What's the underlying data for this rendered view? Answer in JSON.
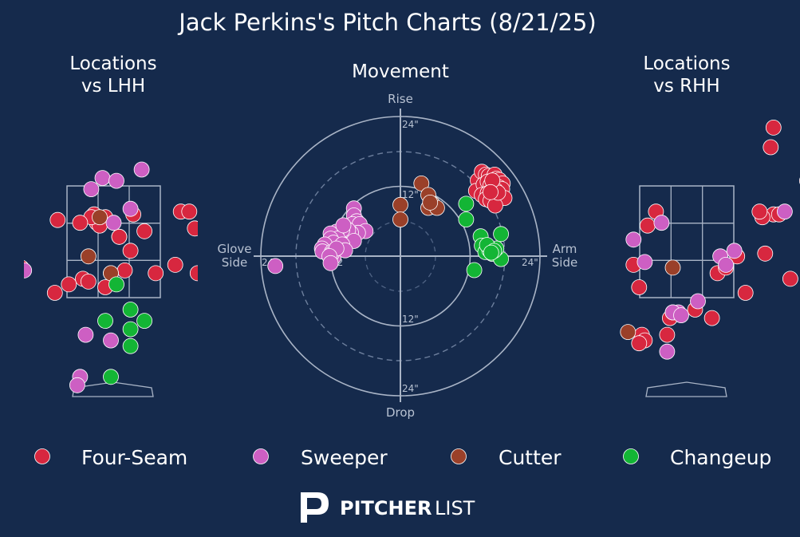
{
  "title": "Jack Perkins's Pitch Charts (8/21/25)",
  "colors": {
    "background": "#152a4c",
    "four_seam": "#d7273f",
    "sweeper": "#cd5fc3",
    "cutter": "#9a4029",
    "changeup": "#13b535",
    "grid": "#a9b4c6"
  },
  "legend": [
    {
      "key": "four_seam",
      "label": "Four-Seam"
    },
    {
      "key": "sweeper",
      "label": "Sweeper"
    },
    {
      "key": "cutter",
      "label": "Cutter"
    },
    {
      "key": "changeup",
      "label": "Changeup"
    }
  ],
  "logo_text": {
    "bold": "PITCHER",
    "light": "LIST"
  },
  "chart_data": [
    {
      "type": "scatter",
      "title_line1": "Locations",
      "title_line2": "vs LHH",
      "series": [
        {
          "name": "Four-Seam",
          "key": "four_seam",
          "points": [
            [
              2.65,
              4.1
            ],
            [
              1.45,
              3.25
            ],
            [
              0.55,
              3.2
            ],
            [
              0.35,
              3.5
            ],
            [
              0.3,
              2.85
            ],
            [
              0.1,
              3.1
            ],
            [
              -0.15,
              3.45
            ],
            [
              -0.35,
              3.5
            ],
            [
              -0.3,
              3.35
            ],
            [
              -0.25,
              3.3
            ],
            [
              -0.4,
              3.45
            ],
            [
              -0.6,
              3.35
            ],
            [
              -1.0,
              3.4
            ],
            [
              -0.55,
              2.35
            ],
            [
              -0.8,
              2.25
            ],
            [
              -0.15,
              2.2
            ],
            [
              0.2,
              2.5
            ],
            [
              0.75,
              2.45
            ],
            [
              1.1,
              2.6
            ],
            [
              1.5,
              2.45
            ],
            [
              -1.65,
              2.55
            ],
            [
              -1.05,
              2.1
            ],
            [
              0.1,
              3.1
            ],
            [
              -0.45,
              2.3
            ],
            [
              1.2,
              3.55
            ],
            [
              1.35,
              3.55
            ]
          ]
        },
        {
          "name": "Sweeper",
          "key": "sweeper",
          "points": [
            [
              -0.2,
              4.15
            ],
            [
              0.05,
              4.1
            ],
            [
              0.5,
              4.3
            ],
            [
              -0.4,
              3.95
            ],
            [
              0.3,
              3.6
            ],
            [
              0.0,
              3.35
            ],
            [
              -1.6,
              2.5
            ],
            [
              -0.05,
              2.45
            ],
            [
              -0.5,
              1.35
            ],
            [
              -0.05,
              1.25
            ],
            [
              -0.6,
              0.6
            ],
            [
              -0.65,
              0.45
            ]
          ]
        },
        {
          "name": "Cutter",
          "key": "cutter",
          "points": [
            [
              -0.45,
              2.75
            ],
            [
              -0.05,
              2.45
            ],
            [
              -1.75,
              1.25
            ],
            [
              -0.25,
              3.45
            ]
          ]
        },
        {
          "name": "Changeup",
          "key": "changeup",
          "points": [
            [
              2.5,
              3.9
            ],
            [
              2.6,
              3.8
            ],
            [
              2.6,
              2.4
            ],
            [
              2.55,
              1.85
            ],
            [
              0.3,
              1.8
            ],
            [
              0.55,
              1.6
            ],
            [
              0.3,
              1.45
            ],
            [
              0.3,
              1.15
            ],
            [
              -0.15,
              1.6
            ],
            [
              -0.05,
              0.6
            ],
            [
              0.05,
              2.25
            ]
          ]
        }
      ]
    },
    {
      "type": "scatter",
      "title": "Movement",
      "labels": {
        "top": "Rise",
        "bottom": "Drop",
        "left_line1": "Glove",
        "left_line2": "Side",
        "right_line1": "Arm",
        "right_line2": "Side"
      },
      "ring_labels": {
        "top_outer": "24\"",
        "top_inner": "12\"",
        "bottom_inner": "12\"",
        "bottom_outer": "24\"",
        "left_outer": "24\"",
        "left_inner": "12",
        "right_outer": "24\""
      },
      "series": [
        {
          "name": "Four-Seam",
          "key": "four_seam",
          "points": [
            [
              13.3,
              13.0
            ],
            [
              14.0,
              14.5
            ],
            [
              14.7,
              14.0
            ],
            [
              15.2,
              13.8
            ],
            [
              16.2,
              14.0
            ],
            [
              16.5,
              13.3
            ],
            [
              17.0,
              13.1
            ],
            [
              17.6,
              12.5
            ],
            [
              13.0,
              11.2
            ],
            [
              14.3,
              12.3
            ],
            [
              15.0,
              12.8
            ],
            [
              15.5,
              12.2
            ],
            [
              16.0,
              11.8
            ],
            [
              16.5,
              12.0
            ],
            [
              17.0,
              11.8
            ],
            [
              17.5,
              11.5
            ],
            [
              14.0,
              10.5
            ],
            [
              15.0,
              10.8
            ],
            [
              16.0,
              10.5
            ],
            [
              16.4,
              11.3
            ],
            [
              17.2,
              10.2
            ],
            [
              17.9,
              10.0
            ],
            [
              14.7,
              9.8
            ],
            [
              15.5,
              9.5
            ],
            [
              16.3,
              8.7
            ],
            [
              16.8,
              10.9
            ],
            [
              15.8,
              13.0
            ],
            [
              15.5,
              11.0
            ]
          ]
        },
        {
          "name": "Sweeper",
          "key": "sweeper",
          "points": [
            [
              -8.0,
              8.2
            ],
            [
              -8.0,
              7.0
            ],
            [
              -7.5,
              6.0
            ],
            [
              -8.2,
              5.5
            ],
            [
              -7.0,
              5.5
            ],
            [
              -6.0,
              4.3
            ],
            [
              -7.3,
              4.0
            ],
            [
              -8.5,
              4.0
            ],
            [
              -9.0,
              4.5
            ],
            [
              -10.0,
              4.5
            ],
            [
              -11.0,
              4.2
            ],
            [
              -12.0,
              3.9
            ],
            [
              -10.8,
              3.0
            ],
            [
              -12.0,
              3.0
            ],
            [
              -11.5,
              2.3
            ],
            [
              -13.0,
              2.0
            ],
            [
              -13.5,
              1.3
            ],
            [
              -12.5,
              0.5
            ],
            [
              -13.4,
              0.8
            ],
            [
              -11.8,
              0.7
            ],
            [
              -11.5,
              -0.2
            ],
            [
              -11.8,
              0.4
            ],
            [
              -8.0,
              2.6
            ],
            [
              -10.0,
              2.0
            ],
            [
              -9.5,
              1.0
            ],
            [
              -11.0,
              1.3
            ],
            [
              -12.2,
              0.0
            ],
            [
              -12.0,
              -1.2
            ],
            [
              -21.5,
              -1.7
            ],
            [
              -9.8,
              5.3
            ]
          ]
        },
        {
          "name": "Cutter",
          "key": "cutter",
          "points": [
            [
              3.6,
              12.5
            ],
            [
              4.8,
              10.5
            ],
            [
              5.5,
              9.0
            ],
            [
              4.8,
              8.3
            ],
            [
              6.3,
              8.3
            ],
            [
              0.0,
              8.8
            ],
            [
              0.0,
              6.3
            ],
            [
              5.1,
              9.2
            ]
          ]
        },
        {
          "name": "Changeup",
          "key": "changeup",
          "points": [
            [
              11.3,
              9.0
            ],
            [
              11.3,
              6.3
            ],
            [
              13.8,
              3.4
            ],
            [
              17.3,
              3.8
            ],
            [
              14.0,
              1.8
            ],
            [
              14.6,
              0.7
            ],
            [
              15.8,
              0.4
            ],
            [
              17.3,
              -0.5
            ],
            [
              16.5,
              1.3
            ],
            [
              12.7,
              -2.4
            ],
            [
              15.3,
              1.0
            ],
            [
              14.9,
              1.9
            ],
            [
              16.1,
              0.9
            ],
            [
              15.6,
              0.6
            ]
          ]
        }
      ]
    },
    {
      "type": "scatter",
      "title_line1": "Locations",
      "title_line2": "vs RHH",
      "series": [
        {
          "name": "Four-Seam",
          "key": "four_seam",
          "points": [
            [
              1.55,
              5.05
            ],
            [
              1.5,
              4.7
            ],
            [
              2.15,
              4.1
            ],
            [
              2.3,
              3.6
            ],
            [
              2.25,
              2.9
            ],
            [
              1.85,
              2.35
            ],
            [
              1.55,
              3.5
            ],
            [
              1.35,
              3.45
            ],
            [
              1.3,
              3.55
            ],
            [
              0.9,
              2.75
            ],
            [
              0.55,
              2.45
            ],
            [
              0.7,
              2.55
            ],
            [
              1.4,
              2.8
            ],
            [
              -0.55,
              3.55
            ],
            [
              -0.7,
              3.3
            ],
            [
              -0.95,
              2.6
            ],
            [
              -0.85,
              2.2
            ],
            [
              -0.3,
              1.65
            ],
            [
              -0.8,
              1.35
            ],
            [
              -0.75,
              1.25
            ],
            [
              -0.35,
              1.35
            ],
            [
              -0.85,
              1.2
            ],
            [
              0.15,
              1.8
            ],
            [
              1.05,
              2.1
            ],
            [
              0.45,
              1.65
            ],
            [
              1.65,
              3.5
            ]
          ]
        },
        {
          "name": "Sweeper",
          "key": "sweeper",
          "points": [
            [
              1.75,
              3.55
            ],
            [
              -0.45,
              3.35
            ],
            [
              -0.95,
              3.05
            ],
            [
              -0.75,
              2.65
            ],
            [
              0.6,
              2.75
            ],
            [
              0.7,
              2.6
            ],
            [
              0.85,
              2.85
            ],
            [
              -0.25,
              1.75
            ],
            [
              -0.15,
              1.75
            ],
            [
              -0.25,
              1.75
            ],
            [
              -0.1,
              1.7
            ],
            [
              0.2,
              1.95
            ],
            [
              -0.35,
              1.05
            ]
          ]
        },
        {
          "name": "Cutter",
          "key": "cutter",
          "points": [
            [
              -0.25,
              2.55
            ],
            [
              -1.05,
              1.4
            ]
          ]
        },
        {
          "name": "Changeup",
          "key": "changeup",
          "points": []
        }
      ]
    }
  ]
}
